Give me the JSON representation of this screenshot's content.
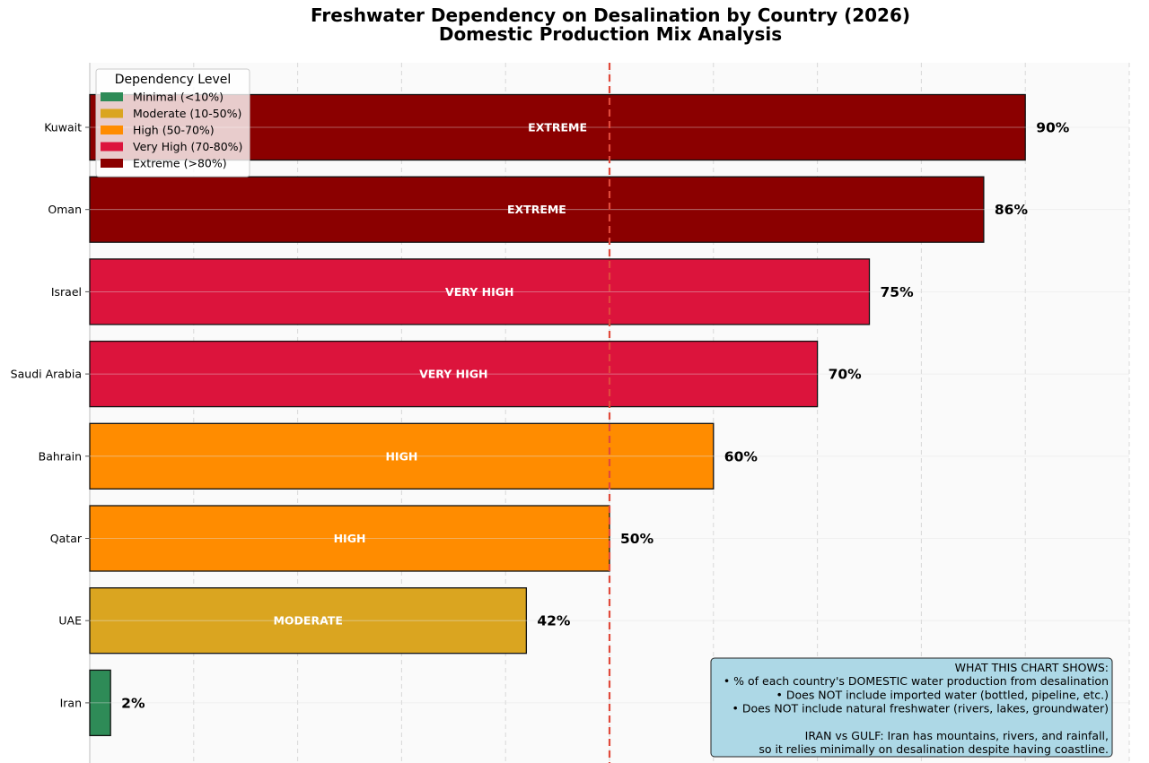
{
  "chart_data": {
    "type": "bar",
    "orientation": "horizontal",
    "title": "Freshwater Dependency on Desalination by Country (2026)",
    "subtitle": "Domestic Production Mix Analysis",
    "xlabel": "",
    "ylabel": "",
    "xlim": [
      0,
      100
    ],
    "grid": true,
    "reference_line": {
      "value": 50,
      "style": "dashed",
      "color": "#e04a3c"
    },
    "categories": [
      "Kuwait",
      "Oman",
      "Israel",
      "Saudi Arabia",
      "Bahrain",
      "Qatar",
      "UAE",
      "Iran"
    ],
    "values": [
      90,
      86,
      75,
      70,
      60,
      50,
      42,
      2
    ],
    "value_labels": [
      "90%",
      "86%",
      "75%",
      "70%",
      "60%",
      "50%",
      "42%",
      "2%"
    ],
    "bar_labels": [
      "EXTREME",
      "EXTREME",
      "VERY HIGH",
      "VERY HIGH",
      "HIGH",
      "HIGH",
      "MODERATE",
      ""
    ],
    "levels": [
      "Extreme",
      "Extreme",
      "Very High",
      "Very High",
      "High",
      "High",
      "Moderate",
      "Minimal"
    ],
    "legend": {
      "title": "Dependency Level",
      "position": "top-left",
      "entries": [
        {
          "label": "Minimal (<10%)",
          "color": "#2e8b57"
        },
        {
          "label": "Moderate (10-50%)",
          "color": "#daa520"
        },
        {
          "label": "High (50-70%)",
          "color": "#ff8c00"
        },
        {
          "label": "Very High (70-80%)",
          "color": "#dc143c"
        },
        {
          "label": "Extreme (>80%)",
          "color": "#8b0000"
        }
      ]
    },
    "level_colors": {
      "Minimal": "#2e8b57",
      "Moderate": "#daa520",
      "High": "#ff8c00",
      "Very High": "#dc143c",
      "Extreme": "#8b0000"
    },
    "annotation": {
      "lines": [
        "WHAT THIS CHART SHOWS:",
        "• % of each country's DOMESTIC water production from desalination",
        "• Does NOT include imported water (bottled, pipeline, etc.)",
        "• Does NOT include natural freshwater (rivers, lakes, groundwater)",
        "",
        "IRAN vs GULF: Iran has mountains, rivers, and rainfall,",
        "so it relies minimally on desalination despite having coastline."
      ],
      "background": "#add8e6",
      "position": "bottom-right"
    }
  }
}
